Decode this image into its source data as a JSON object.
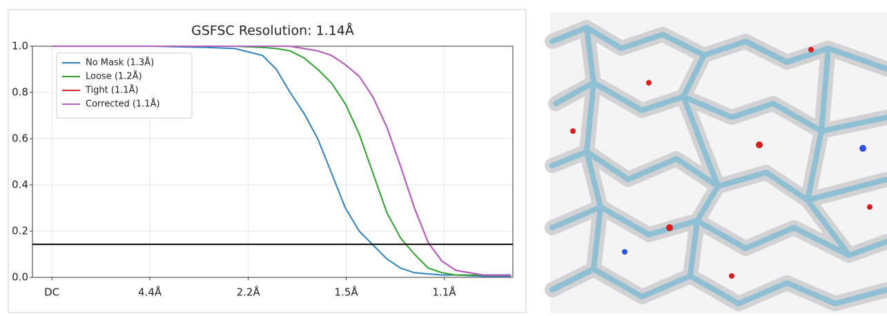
{
  "chart_data": {
    "type": "line",
    "title": "GSFSC Resolution: 1.14Å",
    "x": [
      0,
      0.12,
      0.232,
      0.36,
      0.424,
      0.488,
      0.52,
      0.552,
      0.584,
      0.616,
      0.648,
      0.68,
      0.712,
      0.744,
      0.776,
      0.808,
      0.84,
      0.872,
      0.904,
      0.936,
      0.999,
      1.064
    ],
    "series": [
      {
        "name": "No Mask (1.3Å)",
        "color": "#2f7fb8",
        "values": [
          1,
          1,
          1,
          0.995,
          0.99,
          0.96,
          0.9,
          0.8,
          0.71,
          0.6,
          0.45,
          0.3,
          0.2,
          0.14,
          0.08,
          0.04,
          0.02,
          0.015,
          0.01,
          0.01,
          0.005,
          0.005
        ]
      },
      {
        "name": "Loose (1.2Å)",
        "color": "#2ca02c",
        "values": [
          1,
          1,
          1,
          1,
          1,
          0.995,
          0.99,
          0.98,
          0.95,
          0.9,
          0.84,
          0.75,
          0.62,
          0.45,
          0.28,
          0.17,
          0.1,
          0.04,
          0.02,
          0.01,
          0.01,
          0.01
        ]
      },
      {
        "name": "Tight (1.1Å)",
        "color": "#d62728",
        "values": [
          1,
          1,
          1,
          1,
          1,
          1,
          1,
          1,
          0.99,
          0.98,
          0.96,
          0.92,
          0.87,
          0.78,
          0.65,
          0.48,
          0.3,
          0.15,
          0.07,
          0.03,
          0.01,
          0.01
        ]
      },
      {
        "name": "Corrected (1.1Å)",
        "color": "#b060c0",
        "values": [
          1,
          1,
          1,
          1,
          1,
          1,
          1,
          1,
          0.99,
          0.98,
          0.96,
          0.92,
          0.87,
          0.78,
          0.65,
          0.48,
          0.3,
          0.15,
          0.07,
          0.03,
          0.01,
          0.01
        ]
      }
    ],
    "threshold": 0.143,
    "xlim": [
      -0.045,
      1.068
    ],
    "xticks": [
      {
        "value": 0,
        "label": "DC"
      },
      {
        "value": 0.227,
        "label": "4.4Å"
      },
      {
        "value": 0.455,
        "label": "2.2Å"
      },
      {
        "value": 0.682,
        "label": "1.5Å"
      },
      {
        "value": 0.909,
        "label": "1.1Å"
      }
    ],
    "ylim": [
      0,
      1
    ],
    "yticks": [
      {
        "value": 0,
        "label": "0.0"
      },
      0.2,
      0.4,
      0.6,
      0.8,
      {
        "value": 1,
        "label": "1.0"
      }
    ],
    "grid": true,
    "legend": "upper-left"
  }
}
